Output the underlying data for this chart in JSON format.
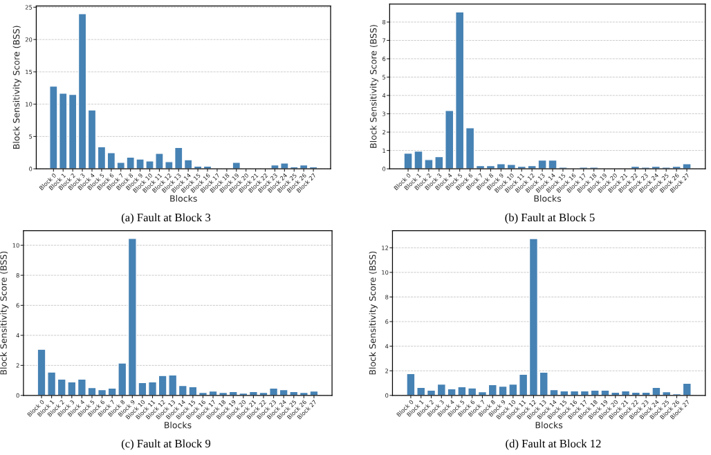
{
  "chart_data": [
    {
      "type": "bar",
      "title": "(a) Fault at Block 3",
      "xlabel": "Blocks",
      "ylabel": "Block Sensitivity Score (BSS)",
      "color": "#4682b4",
      "grid": "y",
      "categories": [
        "Block 0",
        "Block 1",
        "Block 2",
        "Block 3",
        "Block 4",
        "Block 5",
        "Block 6",
        "Block 7",
        "Block 8",
        "Block 9",
        "Block 10",
        "Block 11",
        "Block 12",
        "Block 13",
        "Block 14",
        "Block 15",
        "Block 16",
        "Block 17",
        "Block 18",
        "Block 19",
        "Block 20",
        "Block 21",
        "Block 22",
        "Block 23",
        "Block 24",
        "Block 25",
        "Block 26",
        "Block 27"
      ],
      "values": [
        12.8,
        11.7,
        11.5,
        24.0,
        9.1,
        3.4,
        2.5,
        1.0,
        1.8,
        1.5,
        1.2,
        2.4,
        1.1,
        3.3,
        1.4,
        0.4,
        0.4,
        0.1,
        0.1,
        1.0,
        0.1,
        0.1,
        0.1,
        0.6,
        0.9,
        0.3,
        0.6,
        0.3
      ],
      "ylim": [
        0,
        25.2
      ],
      "yticks": [
        0,
        5,
        10,
        15,
        20,
        25
      ]
    },
    {
      "type": "bar",
      "title": "(b) Fault at Block 5",
      "xlabel": "Blocks",
      "ylabel": "Block Sensitivity Score (BSS)",
      "color": "#4682b4",
      "grid": "y",
      "categories": [
        "Block 0",
        "Block 1",
        "Block 2",
        "Block 3",
        "Block 4",
        "Block 5",
        "Block 6",
        "Block 7",
        "Block 8",
        "Block 9",
        "Block 10",
        "Block 11",
        "Block 12",
        "Block 13",
        "Block 14",
        "Block 15",
        "Block 16",
        "Block 17",
        "Block 18",
        "Block 19",
        "Block 20",
        "Block 21",
        "Block 22",
        "Block 23",
        "Block 24",
        "Block 25",
        "Block 26",
        "Block 27"
      ],
      "values": [
        0.85,
        0.96,
        0.5,
        0.66,
        3.18,
        8.55,
        2.24,
        0.17,
        0.17,
        0.28,
        0.24,
        0.13,
        0.17,
        0.47,
        0.47,
        0.09,
        0.05,
        0.09,
        0.09,
        0.05,
        0.05,
        0.05,
        0.13,
        0.09,
        0.13,
        0.09,
        0.13,
        0.28
      ],
      "ylim": [
        0,
        8.98
      ],
      "yticks": [
        0,
        1,
        2,
        3,
        4,
        5,
        6,
        7,
        8
      ]
    },
    {
      "type": "bar",
      "title": "(c) Fault at Block 9",
      "xlabel": "Blocks",
      "ylabel": "Block Sensitivity Score (BSS)",
      "color": "#4682b4",
      "grid": "y",
      "categories": [
        "Block 0",
        "Block 1",
        "Block 2",
        "Block 3",
        "Block 4",
        "Block 5",
        "Block 6",
        "Block 7",
        "Block 8",
        "Block 9",
        "Block 10",
        "Block 11",
        "Block 12",
        "Block 13",
        "Block 14",
        "Block 15",
        "Block 16",
        "Block 17",
        "Block 18",
        "Block 19",
        "Block 20",
        "Block 21",
        "Block 22",
        "Block 23",
        "Block 24",
        "Block 25",
        "Block 26",
        "Block 27"
      ],
      "values": [
        3.07,
        1.55,
        1.08,
        0.9,
        1.08,
        0.52,
        0.38,
        0.48,
        2.15,
        10.45,
        0.85,
        0.9,
        1.32,
        1.36,
        0.66,
        0.57,
        0.2,
        0.29,
        0.2,
        0.25,
        0.15,
        0.25,
        0.2,
        0.48,
        0.38,
        0.25,
        0.2,
        0.29
      ],
      "ylim": [
        0,
        10.97
      ],
      "yticks": [
        0,
        2,
        4,
        6,
        8,
        10
      ]
    },
    {
      "type": "bar",
      "title": "(d) Fault at Block 12",
      "xlabel": "Blocks",
      "ylabel": "Block Sensitivity Score (BSS)",
      "color": "#4682b4",
      "grid": "y",
      "categories": [
        "Block 0",
        "Block 1",
        "Block 2",
        "Block 3",
        "Block 4",
        "Block 5",
        "Block 6",
        "Block 7",
        "Block 8",
        "Block 9",
        "Block 10",
        "Block 11",
        "Block 12",
        "Block 13",
        "Block 14",
        "Block 15",
        "Block 16",
        "Block 17",
        "Block 18",
        "Block 19",
        "Block 20",
        "Block 21",
        "Block 22",
        "Block 23",
        "Block 24",
        "Block 25",
        "Block 26",
        "Block 27"
      ],
      "values": [
        1.77,
        0.65,
        0.42,
        0.92,
        0.53,
        0.7,
        0.6,
        0.3,
        0.87,
        0.75,
        0.92,
        1.72,
        12.75,
        1.88,
        0.47,
        0.36,
        0.36,
        0.36,
        0.42,
        0.42,
        0.25,
        0.36,
        0.25,
        0.25,
        0.65,
        0.3,
        0.13,
        0.98
      ],
      "ylim": [
        0,
        13.39
      ],
      "yticks": [
        0,
        2,
        4,
        6,
        8,
        10,
        12
      ]
    }
  ]
}
